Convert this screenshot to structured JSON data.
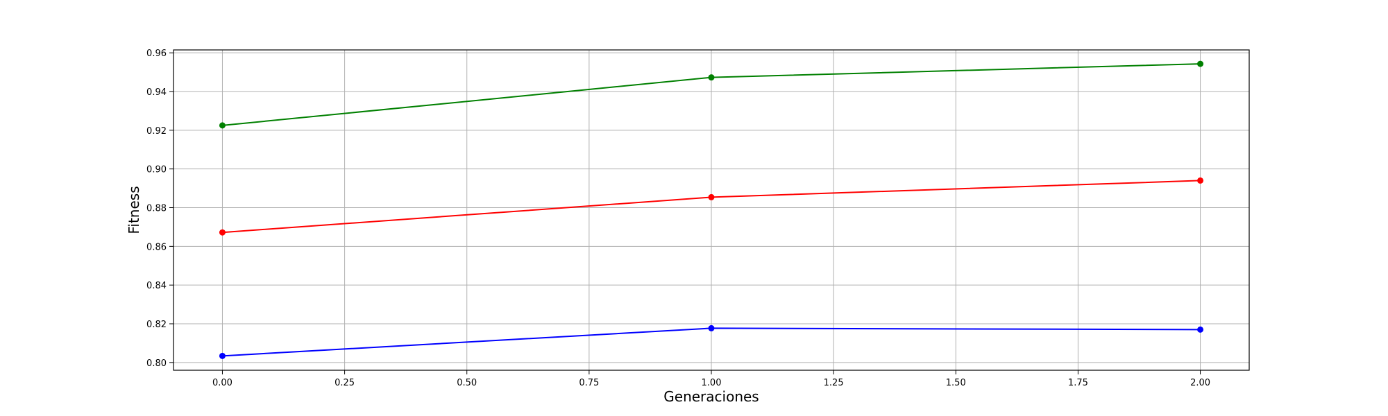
{
  "chart_data": {
    "type": "line",
    "title": "",
    "xlabel": "Generaciones",
    "ylabel": "Fitness",
    "xlim": [
      -0.1,
      2.1
    ],
    "ylim": [
      0.796,
      0.9615
    ],
    "xticks": [
      0.0,
      0.25,
      0.5,
      0.75,
      1.0,
      1.25,
      1.5,
      1.75,
      2.0
    ],
    "xtick_labels": [
      "0.00",
      "0.25",
      "0.50",
      "0.75",
      "1.00",
      "1.25",
      "1.50",
      "1.75",
      "2.00"
    ],
    "yticks": [
      0.8,
      0.82,
      0.84,
      0.86,
      0.88,
      0.9,
      0.92,
      0.94,
      0.96
    ],
    "ytick_labels": [
      "0.80",
      "0.82",
      "0.84",
      "0.86",
      "0.88",
      "0.90",
      "0.92",
      "0.94",
      "0.96"
    ],
    "grid": true,
    "x": [
      0,
      1,
      2
    ],
    "series": [
      {
        "values": [
          0.9225,
          0.9473,
          0.9543
        ],
        "color": "#008000",
        "marker": "circle"
      },
      {
        "values": [
          0.8672,
          0.8854,
          0.894
        ],
        "color": "#ff0000",
        "marker": "circle"
      },
      {
        "values": [
          0.8034,
          0.8177,
          0.817
        ],
        "color": "#0000ff",
        "marker": "circle"
      }
    ]
  }
}
